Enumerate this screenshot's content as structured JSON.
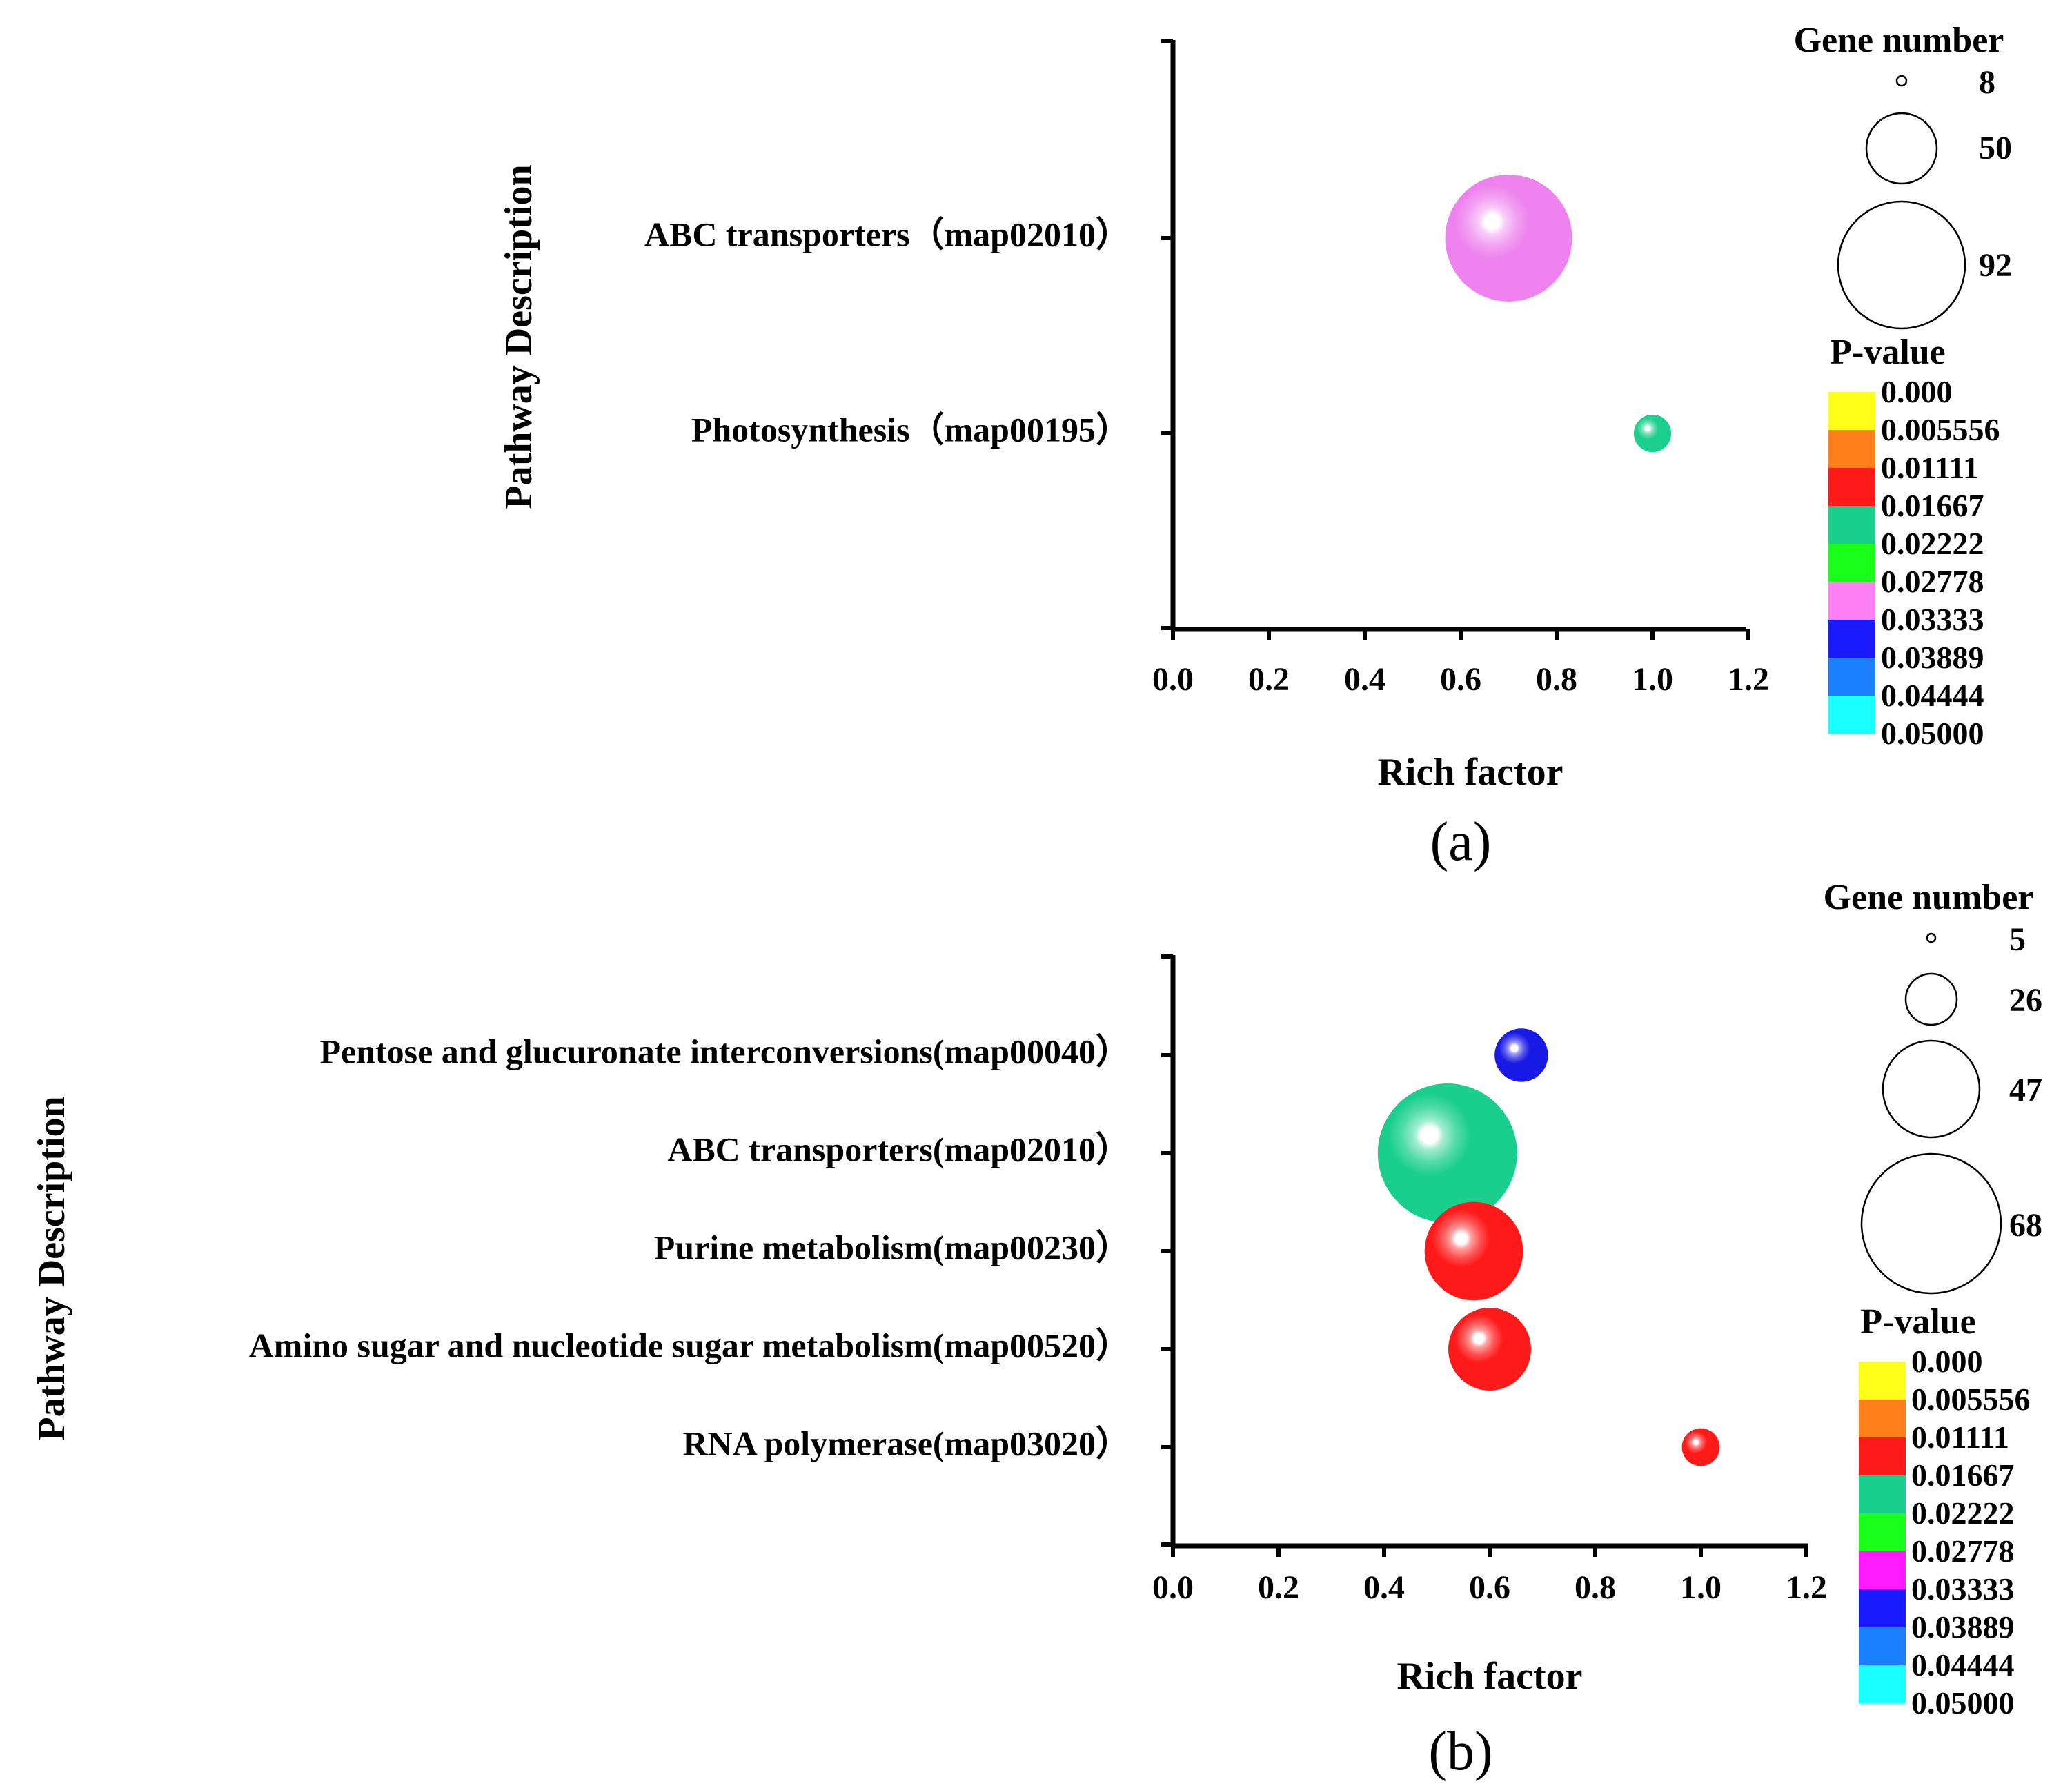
{
  "chart_data": [
    {
      "type": "scatter",
      "subtype": "bubble",
      "panel_label": "(a)",
      "xlabel": "Rich factor",
      "ylabel": "Pathway Description",
      "xlim": [
        0,
        1.2
      ],
      "x_ticks": [
        "0.0",
        "0.2",
        "0.4",
        "0.6",
        "0.8",
        "1.0",
        "1.2"
      ],
      "categories": [
        "ABC transporters（map02010）",
        "Photosynthesis（map00195）"
      ],
      "points": [
        {
          "category": "ABC transporters（map02010）",
          "rich_factor": 0.7,
          "gene_number": 92,
          "color": "#ee82ee"
        },
        {
          "category": "Photosynthesis（map00195）",
          "rich_factor": 1.0,
          "gene_number": 8,
          "color": "#1ccf8e"
        }
      ],
      "size_legend": {
        "title": "Gene number",
        "values": [
          "8",
          "50",
          "92"
        ]
      },
      "color_legend": {
        "title": "P-value",
        "labels": [
          "0.000",
          "0.005556",
          "0.01111",
          "0.01667",
          "0.02222",
          "0.02778",
          "0.03333",
          "0.03889",
          "0.04444",
          "0.05000"
        ],
        "colors": [
          "#ffff1a",
          "#ff7f1a",
          "#ff1a1a",
          "#1acf8e",
          "#1aff1a",
          "#ff80f2",
          "#1a1aff",
          "#1a80ff",
          "#1affff"
        ]
      }
    },
    {
      "type": "scatter",
      "subtype": "bubble",
      "panel_label": "(b)",
      "xlabel": "Rich factor",
      "ylabel": "Pathway Description",
      "xlim": [
        0,
        1.2
      ],
      "x_ticks": [
        "0.0",
        "0.2",
        "0.4",
        "0.6",
        "0.8",
        "1.0",
        "1.2"
      ],
      "categories": [
        "Pentose and glucuronate interconversions(map00040）",
        "ABC transporters(map02010）",
        "Purine metabolism(map00230）",
        "Amino sugar and nucleotide sugar metabolism(map00520）",
        "RNA polymerase(map03020）"
      ],
      "points": [
        {
          "category": "Pentose and glucuronate interconversions(map00040）",
          "rich_factor": 0.66,
          "gene_number": 10,
          "color": "#1a1ae6"
        },
        {
          "category": "ABC transporters(map02010）",
          "rich_factor": 0.52,
          "gene_number": 68,
          "color": "#1acf8e"
        },
        {
          "category": "Purine metabolism(map00230）",
          "rich_factor": 0.57,
          "gene_number": 34,
          "color": "#ff1a1a"
        },
        {
          "category": "Amino sugar and nucleotide sugar metabolism(map00520）",
          "rich_factor": 0.6,
          "gene_number": 24,
          "color": "#ff1a1a"
        },
        {
          "category": "RNA polymerase(map03020）",
          "rich_factor": 1.0,
          "gene_number": 5,
          "color": "#ff1a1a"
        }
      ],
      "size_legend": {
        "title": "Gene number",
        "values": [
          "5",
          "26",
          "47",
          "68"
        ]
      },
      "color_legend": {
        "title": "P-value",
        "labels": [
          "0.000",
          "0.005556",
          "0.01111",
          "0.01667",
          "0.02222",
          "0.02778",
          "0.03333",
          "0.03889",
          "0.04444",
          "0.05000"
        ],
        "colors": [
          "#ffff1a",
          "#ff7f1a",
          "#ff1a1a",
          "#1acf8e",
          "#1aff1a",
          "#ff1aff",
          "#1a1aff",
          "#1a80ff",
          "#1affff"
        ]
      }
    }
  ]
}
